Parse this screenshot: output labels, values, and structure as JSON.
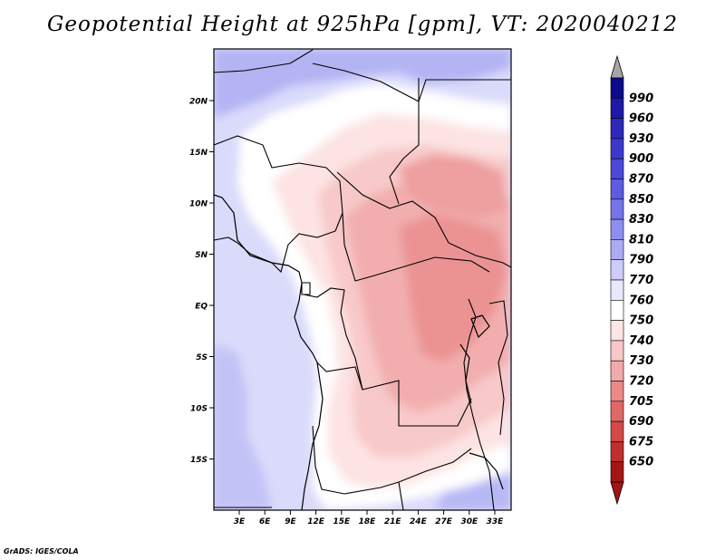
{
  "title": "Geopotential Height at 925hPa [gpm], VT: 2020040212",
  "credit": "GrADS: IGES/COLA",
  "map": {
    "lat_labels": [
      "20N",
      "15N",
      "10N",
      "5N",
      "EQ",
      "5S",
      "10S",
      "15S"
    ],
    "lon_labels": [
      "3E",
      "6E",
      "9E",
      "12E",
      "15E",
      "18E",
      "21E",
      "24E",
      "27E",
      "30E",
      "33E"
    ]
  },
  "colorbar": {
    "labels": [
      "990",
      "960",
      "930",
      "900",
      "870",
      "850",
      "830",
      "810",
      "790",
      "770",
      "760",
      "750",
      "740",
      "730",
      "720",
      "705",
      "690",
      "675",
      "650"
    ],
    "colors": [
      "#0d0b8a",
      "#1e19a6",
      "#2e28bb",
      "#3c38cc",
      "#4c48d8",
      "#5d5be2",
      "#7574ea",
      "#8e8ef0",
      "#ababf4",
      "#cdcdf8",
      "#e8e8fc",
      "#ffffff",
      "#fde5e5",
      "#f8c8c8",
      "#f2a9a9",
      "#eb8888",
      "#e06868",
      "#d44848",
      "#c02e2e",
      "#a41616"
    ],
    "over_color": "#a6a6a6",
    "under_color": "#a01414"
  }
}
